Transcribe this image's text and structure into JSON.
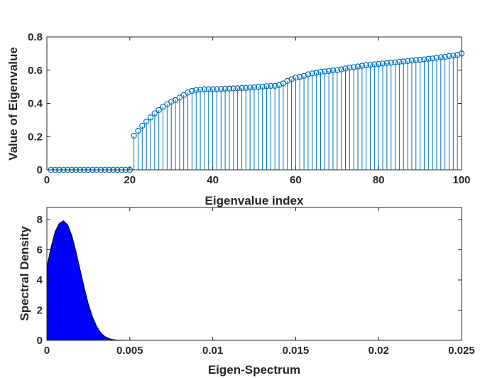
{
  "chart_data": [
    {
      "type": "stem",
      "xlabel": "Eigenvalue index",
      "ylabel": "Value of Eigenvalue",
      "xlim": [
        0,
        100
      ],
      "ylim": [
        0,
        0.8
      ],
      "xticks": [
        "0",
        "20",
        "40",
        "60",
        "80",
        "100"
      ],
      "yticks": [
        "0",
        "0.2",
        "0.4",
        "0.6",
        "0.8"
      ],
      "color": "#0072bd",
      "grid": false,
      "x": [
        1,
        2,
        3,
        4,
        5,
        6,
        7,
        8,
        9,
        10,
        11,
        12,
        13,
        14,
        15,
        16,
        17,
        18,
        19,
        20,
        21,
        22,
        23,
        24,
        25,
        26,
        27,
        28,
        29,
        30,
        31,
        32,
        33,
        34,
        35,
        36,
        37,
        38,
        39,
        40,
        41,
        42,
        43,
        44,
        45,
        46,
        47,
        48,
        49,
        50,
        51,
        52,
        53,
        54,
        55,
        56,
        57,
        58,
        59,
        60,
        61,
        62,
        63,
        64,
        65,
        66,
        67,
        68,
        69,
        70,
        71,
        72,
        73,
        74,
        75,
        76,
        77,
        78,
        79,
        80,
        81,
        82,
        83,
        84,
        85,
        86,
        87,
        88,
        89,
        90,
        91,
        92,
        93,
        94,
        95,
        96,
        97,
        98,
        99,
        100
      ],
      "values": [
        0,
        0,
        0,
        0,
        0,
        0,
        0,
        0,
        0,
        0,
        0,
        0,
        0,
        0,
        0,
        0,
        0,
        0,
        0,
        0,
        0.205,
        0.235,
        0.265,
        0.29,
        0.315,
        0.34,
        0.36,
        0.38,
        0.395,
        0.41,
        0.42,
        0.435,
        0.45,
        0.465,
        0.475,
        0.48,
        0.483,
        0.485,
        0.485,
        0.485,
        0.486,
        0.487,
        0.488,
        0.489,
        0.49,
        0.491,
        0.492,
        0.493,
        0.495,
        0.497,
        0.499,
        0.501,
        0.503,
        0.505,
        0.505,
        0.51,
        0.52,
        0.535,
        0.545,
        0.555,
        0.56,
        0.565,
        0.575,
        0.58,
        0.585,
        0.59,
        0.592,
        0.595,
        0.598,
        0.6,
        0.605,
        0.61,
        0.615,
        0.618,
        0.622,
        0.626,
        0.63,
        0.632,
        0.635,
        0.637,
        0.64,
        0.643,
        0.645,
        0.647,
        0.65,
        0.652,
        0.655,
        0.658,
        0.66,
        0.663,
        0.665,
        0.668,
        0.67,
        0.675,
        0.678,
        0.68,
        0.685,
        0.688,
        0.692,
        0.7
      ]
    },
    {
      "type": "area",
      "xlabel": "Eigen-Spectrum",
      "ylabel": "Spectral Density",
      "xlim": [
        0,
        0.025
      ],
      "ylim": [
        0,
        8.8
      ],
      "xticks": [
        "0",
        "0.005",
        "0.01",
        "0.015",
        "0.02",
        "0.025"
      ],
      "yticks": [
        "0",
        "2",
        "4",
        "6",
        "8"
      ],
      "color": "#0000ff",
      "grid": false,
      "x": [
        0,
        0.00025,
        0.0005,
        0.00075,
        0.001,
        0.00125,
        0.0015,
        0.00175,
        0.002,
        0.00225,
        0.0025,
        0.00275,
        0.003,
        0.00325,
        0.0035,
        0.00375,
        0.004,
        0.00425,
        0.0045,
        0.00475,
        0.005,
        0.0055,
        0.006,
        0.025
      ],
      "values": [
        4.85,
        6.15,
        7.2,
        7.75,
        7.92,
        7.65,
        6.95,
        5.9,
        4.7,
        3.5,
        2.4,
        1.55,
        0.92,
        0.5,
        0.25,
        0.12,
        0.05,
        0.02,
        0.01,
        0.004,
        0.002,
        0,
        0,
        0
      ]
    }
  ]
}
